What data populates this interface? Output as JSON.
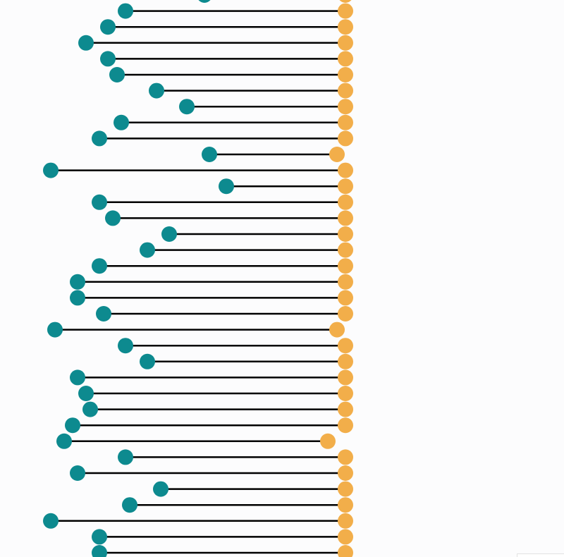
{
  "chart_data": {
    "type": "dumbbell",
    "title": "",
    "xlabel": "",
    "ylabel": "",
    "xlim": [
      0,
      800
    ],
    "grid": false,
    "legend": "none",
    "colors": {
      "start": "#0d8a8f",
      "end": "#f2ae4a",
      "line": "#000000",
      "background": "#fcfcfd"
    },
    "rows": [
      {
        "start": 290,
        "end": 490
      },
      {
        "start": 178,
        "end": 490
      },
      {
        "start": 153,
        "end": 490
      },
      {
        "start": 122,
        "end": 490
      },
      {
        "start": 153,
        "end": 490
      },
      {
        "start": 166,
        "end": 490
      },
      {
        "start": 222,
        "end": 490
      },
      {
        "start": 265,
        "end": 490
      },
      {
        "start": 172,
        "end": 490
      },
      {
        "start": 141,
        "end": 490
      },
      {
        "start": 297,
        "end": 478
      },
      {
        "start": 72,
        "end": 490
      },
      {
        "start": 321,
        "end": 490
      },
      {
        "start": 141,
        "end": 490
      },
      {
        "start": 160,
        "end": 490
      },
      {
        "start": 240,
        "end": 490
      },
      {
        "start": 209,
        "end": 490
      },
      {
        "start": 141,
        "end": 490
      },
      {
        "start": 110,
        "end": 490
      },
      {
        "start": 110,
        "end": 490
      },
      {
        "start": 147,
        "end": 490
      },
      {
        "start": 78,
        "end": 478
      },
      {
        "start": 178,
        "end": 490
      },
      {
        "start": 209,
        "end": 490
      },
      {
        "start": 110,
        "end": 490
      },
      {
        "start": 122,
        "end": 490
      },
      {
        "start": 128,
        "end": 490
      },
      {
        "start": 103,
        "end": 490
      },
      {
        "start": 91,
        "end": 465
      },
      {
        "start": 178,
        "end": 490
      },
      {
        "start": 110,
        "end": 490
      },
      {
        "start": 228,
        "end": 490
      },
      {
        "start": 184,
        "end": 490
      },
      {
        "start": 72,
        "end": 490
      },
      {
        "start": 141,
        "end": 490
      },
      {
        "start": 141,
        "end": 490
      }
    ]
  }
}
